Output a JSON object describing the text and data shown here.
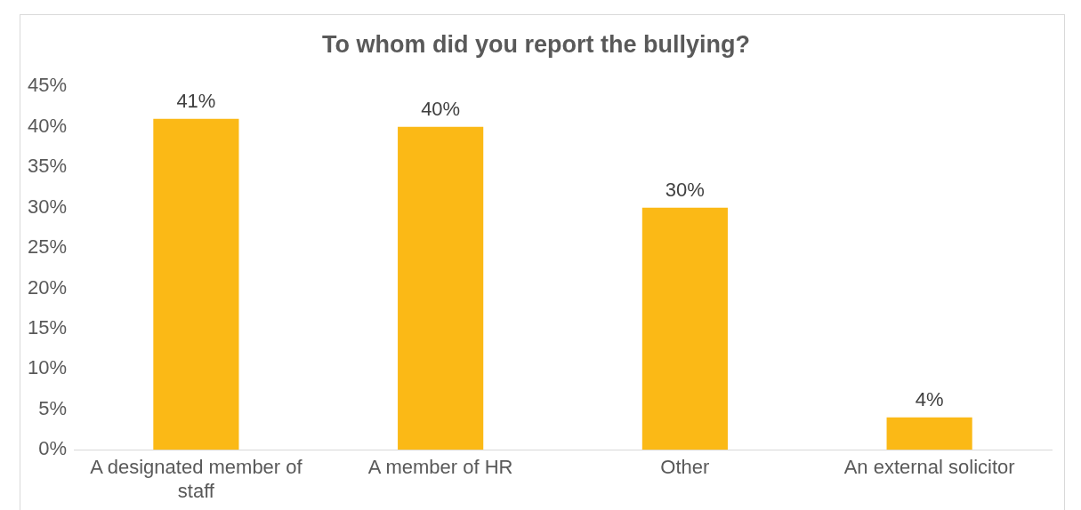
{
  "chart_data": {
    "type": "bar",
    "title": "To whom did you report the bullying?",
    "categories": [
      "A designated member of staff",
      "A member of HR",
      "Other",
      "An external solicitor"
    ],
    "values": [
      41,
      40,
      30,
      4
    ],
    "value_labels": [
      "41%",
      "40%",
      "30%",
      "4%"
    ],
    "color": "#fbb916",
    "ylim": [
      0,
      45
    ],
    "yticks": [
      {
        "value": 0,
        "label": "0%"
      },
      {
        "value": 5,
        "label": "5%"
      },
      {
        "value": 10,
        "label": "10%"
      },
      {
        "value": 15,
        "label": "15%"
      },
      {
        "value": 20,
        "label": "20%"
      },
      {
        "value": 25,
        "label": "25%"
      },
      {
        "value": 30,
        "label": "30%"
      },
      {
        "value": 35,
        "label": "35%"
      },
      {
        "value": 40,
        "label": "40%"
      },
      {
        "value": 45,
        "label": "45%"
      }
    ],
    "grid": false,
    "legend": false
  }
}
